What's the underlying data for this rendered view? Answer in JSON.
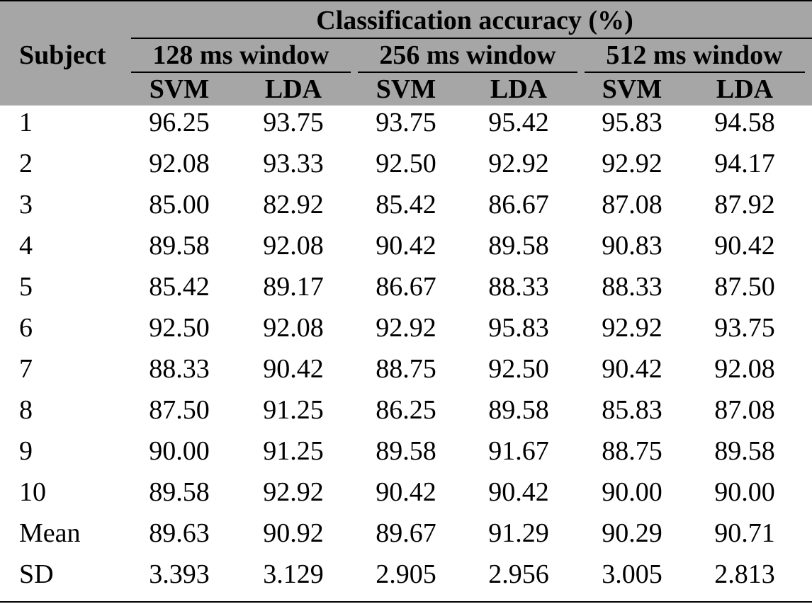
{
  "table": {
    "group_title": "Classification accuracy (%)",
    "subject_header": "Subject",
    "windows": [
      "128 ms window",
      "256 ms window",
      "512 ms window"
    ],
    "methods": [
      "SVM",
      "LDA",
      "SVM",
      "LDA",
      "SVM",
      "LDA"
    ],
    "rows": [
      {
        "subject": "1",
        "values": [
          "96.25",
          "93.75",
          "93.75",
          "95.42",
          "95.83",
          "94.58"
        ]
      },
      {
        "subject": "2",
        "values": [
          "92.08",
          "93.33",
          "92.50",
          "92.92",
          "92.92",
          "94.17"
        ]
      },
      {
        "subject": "3",
        "values": [
          "85.00",
          "82.92",
          "85.42",
          "86.67",
          "87.08",
          "87.92"
        ]
      },
      {
        "subject": "4",
        "values": [
          "89.58",
          "92.08",
          "90.42",
          "89.58",
          "90.83",
          "90.42"
        ]
      },
      {
        "subject": "5",
        "values": [
          "85.42",
          "89.17",
          "86.67",
          "88.33",
          "88.33",
          "87.50"
        ]
      },
      {
        "subject": "6",
        "values": [
          "92.50",
          "92.08",
          "92.92",
          "95.83",
          "92.92",
          "93.75"
        ]
      },
      {
        "subject": "7",
        "values": [
          "88.33",
          "90.42",
          "88.75",
          "92.50",
          "90.42",
          "92.08"
        ]
      },
      {
        "subject": "8",
        "values": [
          "87.50",
          "91.25",
          "86.25",
          "89.58",
          "85.83",
          "87.08"
        ]
      },
      {
        "subject": "9",
        "values": [
          "90.00",
          "91.25",
          "89.58",
          "91.67",
          "88.75",
          "89.58"
        ]
      },
      {
        "subject": "10",
        "values": [
          "89.58",
          "92.92",
          "90.42",
          "90.42",
          "90.00",
          "90.00"
        ]
      },
      {
        "subject": "Mean",
        "values": [
          "89.63",
          "90.92",
          "89.67",
          "91.29",
          "90.29",
          "90.71"
        ]
      },
      {
        "subject": "SD",
        "values": [
          "3.393",
          "3.129",
          "2.905",
          "2.956",
          "3.005",
          "2.813"
        ]
      }
    ]
  }
}
